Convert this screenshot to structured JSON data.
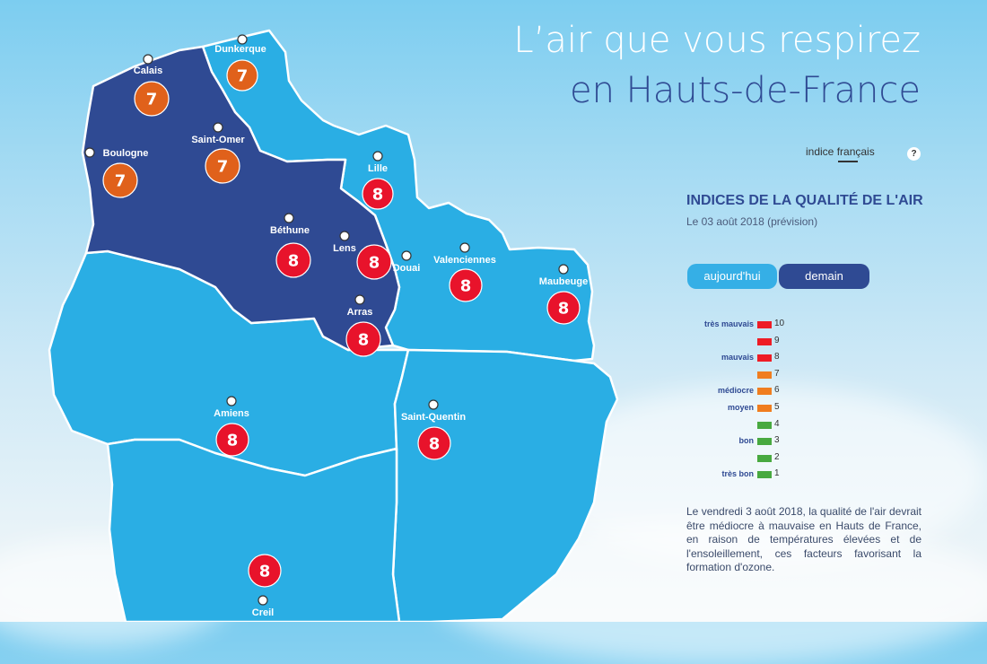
{
  "page": {
    "title_line1": "L’air que vous respirez",
    "title_line2": "en Hauts-de-France",
    "indice_toggle_label": "indice français",
    "help_icon_label": "?",
    "section_title": "INDICES DE LA QUALITÉ DE L'AIR",
    "date_label": "Le 03 août 2018 (prévision)",
    "tabs": [
      {
        "label": "aujourd'hui",
        "active": false
      },
      {
        "label": "demain",
        "active": true
      }
    ],
    "description": "Le vendredi 3 août 2018, la qualité de l'air devrait être médiocre à mauvaise en Hauts de France, en raison de températures élevées et de l'ensoleillement, ces facteurs favorisant la formation d'ozone."
  },
  "colors": {
    "dark_region": "#2f4a93",
    "light_region": "#2aaee4",
    "badge_red": "#e8132b",
    "badge_orange": "#e0611b",
    "legend_green": "#48a940"
  },
  "legend": [
    {
      "label": "très mauvais",
      "value": 10,
      "color": "#ee1c25"
    },
    {
      "label": "",
      "value": 9,
      "color": "#ee1c25"
    },
    {
      "label": "mauvais",
      "value": 8,
      "color": "#ee1c25"
    },
    {
      "label": "",
      "value": 7,
      "color": "#f07d1f"
    },
    {
      "label": "médiocre",
      "value": 6,
      "color": "#f07d1f"
    },
    {
      "label": "moyen",
      "value": 5,
      "color": "#f07d1f"
    },
    {
      "label": "",
      "value": 4,
      "color": "#48a940"
    },
    {
      "label": "bon",
      "value": 3,
      "color": "#48a940"
    },
    {
      "label": "",
      "value": 2,
      "color": "#48a940"
    },
    {
      "label": "très bon",
      "value": 1,
      "color": "#48a940"
    }
  ],
  "cities": [
    {
      "id": "dunkerque",
      "name": "Dunkerque"
    },
    {
      "id": "calais",
      "name": "Calais"
    },
    {
      "id": "boulogne",
      "name": "Boulogne"
    },
    {
      "id": "saint-omer",
      "name": "Saint-Omer"
    },
    {
      "id": "lille",
      "name": "Lille"
    },
    {
      "id": "bethune",
      "name": "Béthune"
    },
    {
      "id": "lens",
      "name": "Lens"
    },
    {
      "id": "douai",
      "name": "Douai"
    },
    {
      "id": "valenciennes",
      "name": "Valenciennes"
    },
    {
      "id": "maubeuge",
      "name": "Maubeuge"
    },
    {
      "id": "arras",
      "name": "Arras"
    },
    {
      "id": "amiens",
      "name": "Amiens"
    },
    {
      "id": "saint-quentin",
      "name": "Saint-Quentin"
    },
    {
      "id": "creil",
      "name": "Creil"
    }
  ],
  "indices": [
    {
      "id": "dunkerque",
      "value": 7
    },
    {
      "id": "calais",
      "value": 7
    },
    {
      "id": "saint-omer",
      "value": 7
    },
    {
      "id": "boulogne",
      "value": 7
    },
    {
      "id": "lille",
      "value": 8
    },
    {
      "id": "bethune",
      "value": 8
    },
    {
      "id": "lens-douai",
      "value": 8
    },
    {
      "id": "valenciennes",
      "value": 8
    },
    {
      "id": "maubeuge",
      "value": 8
    },
    {
      "id": "arras",
      "value": 8
    },
    {
      "id": "amiens",
      "value": 8
    },
    {
      "id": "saint-quentin",
      "value": 8
    },
    {
      "id": "creil",
      "value": 8
    }
  ]
}
